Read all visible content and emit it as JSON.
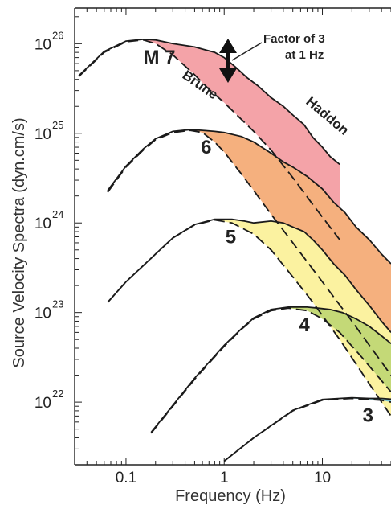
{
  "chart_data": {
    "type": "line",
    "xlabel": "Frequency (Hz)",
    "ylabel": "Source Velocity Spectra (dyn.cm/s)",
    "xscale": "log",
    "yscale": "log",
    "xlim": [
      0.03,
      50
    ],
    "ylim": [
      2e+21,
      2.5e+26
    ],
    "x_ticks": [
      {
        "value": 0.1,
        "label": "0.1"
      },
      {
        "value": 1,
        "label": "1"
      },
      {
        "value": 10,
        "label": "10"
      }
    ],
    "y_ticks": [
      {
        "value": 1e+22,
        "base": "10",
        "exp": "22"
      },
      {
        "value": 1e+23,
        "base": "10",
        "exp": "23"
      },
      {
        "value": 1e+24,
        "base": "10",
        "exp": "24"
      },
      {
        "value": 1e+25,
        "base": "10",
        "exp": "25"
      },
      {
        "value": 1e+26,
        "base": "10",
        "exp": "26"
      }
    ],
    "model_labels": {
      "brune": "Brune",
      "haddon": "Haddon"
    },
    "annotation": {
      "line1": "Factor of 3",
      "line2": "at 1 Hz"
    },
    "series": [
      {
        "magnitude": 7,
        "label": "M 7",
        "fill": "#f4a3a8",
        "end_f": 15,
        "brune": [
          [
            0.033,
            4.3e+25
          ],
          [
            0.06,
            8e+25
          ],
          [
            0.1,
            1.05e+26
          ],
          [
            0.15,
            1.1e+26
          ],
          [
            0.2,
            1e+26
          ],
          [
            0.3,
            7.5e+25
          ],
          [
            0.5,
            4.5e+25
          ],
          [
            0.7,
            3.1e+25
          ],
          [
            1.0,
            2.2e+25
          ],
          [
            2.0,
            1.05e+25
          ],
          [
            3.0,
            6.5e+24
          ],
          [
            5.0,
            3.2e+24
          ],
          [
            8.0,
            1.6e+24
          ],
          [
            15.0,
            6.5e+23
          ]
        ],
        "haddon": [
          [
            0.033,
            4.4e+25
          ],
          [
            0.06,
            8.2e+25
          ],
          [
            0.1,
            1.07e+26
          ],
          [
            0.15,
            1.12e+26
          ],
          [
            0.2,
            1.1e+26
          ],
          [
            0.3,
            1e+26
          ],
          [
            0.5,
            9.2e+25
          ],
          [
            0.8,
            8e+25
          ],
          [
            1.0,
            7e+25
          ],
          [
            1.3,
            5.5e+25
          ],
          [
            1.7,
            4.2e+25
          ],
          [
            2.2,
            3.4e+25
          ],
          [
            3.0,
            2.5e+25
          ],
          [
            4.0,
            2e+25
          ],
          [
            5.0,
            1.6e+25
          ],
          [
            6.5,
            1.25e+25
          ],
          [
            8.0,
            9e+24
          ],
          [
            10.0,
            7e+24
          ],
          [
            12.0,
            5.5e+24
          ],
          [
            15.0,
            4.5e+24
          ]
        ]
      },
      {
        "magnitude": 6,
        "label": "6",
        "fill": "#f5b07e",
        "end_f": 50,
        "brune": [
          [
            0.065,
            2.2e+24
          ],
          [
            0.1,
            4.2e+24
          ],
          [
            0.15,
            6.5e+24
          ],
          [
            0.2,
            8.5e+24
          ],
          [
            0.3,
            1.02e+25
          ],
          [
            0.45,
            1.08e+25
          ],
          [
            0.6,
            1.02e+25
          ],
          [
            0.8,
            8e+24
          ],
          [
            1.0,
            6.2e+24
          ],
          [
            1.5,
            3.5e+24
          ],
          [
            2.0,
            2.3e+24
          ],
          [
            3.0,
            1.25e+24
          ],
          [
            5.0,
            6e+23
          ],
          [
            10.0,
            2.2e+23
          ],
          [
            20.0,
            8e+22
          ],
          [
            50.0,
            2e+22
          ]
        ],
        "haddon": [
          [
            0.065,
            2.3e+24
          ],
          [
            0.1,
            4.3e+24
          ],
          [
            0.15,
            6.7e+24
          ],
          [
            0.2,
            8.7e+24
          ],
          [
            0.3,
            1.05e+25
          ],
          [
            0.45,
            1.1e+25
          ],
          [
            0.6,
            1.08e+25
          ],
          [
            0.8,
            1.05e+25
          ],
          [
            1.0,
            1.02e+25
          ],
          [
            1.5,
            9.2e+24
          ],
          [
            2.0,
            8e+24
          ],
          [
            3.0,
            6e+24
          ],
          [
            4.0,
            4.8e+24
          ],
          [
            5.0,
            4.2e+24
          ],
          [
            7.0,
            3.3e+24
          ],
          [
            10.0,
            2.4e+24
          ],
          [
            13.0,
            1.7e+24
          ],
          [
            17.0,
            1.3e+24
          ],
          [
            22.0,
            9e+23
          ],
          [
            30.0,
            6.5e+23
          ],
          [
            40.0,
            4.5e+23
          ],
          [
            50.0,
            3.5e+23
          ]
        ]
      },
      {
        "magnitude": 5,
        "label": "5",
        "fill": "#fbf2a0",
        "end_f": 50,
        "brune": [
          [
            0.065,
            1.3e+23
          ],
          [
            0.1,
            2.2e+23
          ],
          [
            0.2,
            4.5e+23
          ],
          [
            0.3,
            6.8e+23
          ],
          [
            0.5,
            9.5e+23
          ],
          [
            0.8,
            1.08e+24
          ],
          [
            1.2,
            1e+24
          ],
          [
            2.0,
            7.5e+23
          ],
          [
            3.0,
            5e+23
          ],
          [
            5.0,
            2.5e+23
          ],
          [
            8.0,
            1.3e+23
          ],
          [
            15.0,
            5e+22
          ],
          [
            30.0,
            1.6e+22
          ],
          [
            50.0,
            7e+21
          ]
        ],
        "haddon": [
          [
            0.065,
            1.3e+23
          ],
          [
            0.1,
            2.2e+23
          ],
          [
            0.2,
            4.5e+23
          ],
          [
            0.3,
            6.8e+23
          ],
          [
            0.5,
            9.6e+23
          ],
          [
            0.8,
            1.1e+24
          ],
          [
            1.2,
            1.1e+24
          ],
          [
            1.6,
            1.05e+24
          ],
          [
            2.0,
            1e+24
          ],
          [
            3.0,
            1.05e+24
          ],
          [
            4.0,
            1e+24
          ],
          [
            5.0,
            9e+23
          ],
          [
            6.5,
            8e+23
          ],
          [
            8.0,
            6.5e+23
          ],
          [
            10.0,
            5e+23
          ],
          [
            13.0,
            3.5e+23
          ],
          [
            17.0,
            2.6e+23
          ],
          [
            22.0,
            1.8e+23
          ],
          [
            30.0,
            1.2e+23
          ],
          [
            40.0,
            8e+22
          ],
          [
            50.0,
            6e+22
          ]
        ]
      },
      {
        "magnitude": 4,
        "label": "4",
        "fill": "#c4d977",
        "end_f": 50,
        "brune": [
          [
            0.18,
            4.5e+21
          ],
          [
            0.3,
            9e+21
          ],
          [
            0.5,
            1.8e+22
          ],
          [
            1.0,
            4.2e+22
          ],
          [
            1.5,
            6.5e+22
          ],
          [
            2.0,
            8.5e+22
          ],
          [
            3.0,
            1.05e+23
          ],
          [
            4.5,
            1.12e+23
          ],
          [
            7.0,
            1.05e+23
          ],
          [
            10.0,
            8.5e+22
          ],
          [
            15.0,
            6e+22
          ],
          [
            25.0,
            3.2e+22
          ],
          [
            50.0,
            1.3e+22
          ]
        ],
        "haddon": [
          [
            0.18,
            4.6e+21
          ],
          [
            0.3,
            9.2e+21
          ],
          [
            0.5,
            1.85e+22
          ],
          [
            1.0,
            4.3e+22
          ],
          [
            1.5,
            6.6e+22
          ],
          [
            2.0,
            8.7e+22
          ],
          [
            3.0,
            1.08e+23
          ],
          [
            4.5,
            1.15e+23
          ],
          [
            7.0,
            1.15e+23
          ],
          [
            9.0,
            1.12e+23
          ],
          [
            12.0,
            1.08e+23
          ],
          [
            16.0,
            1e+23
          ],
          [
            22.0,
            8.5e+22
          ],
          [
            30.0,
            7e+22
          ],
          [
            40.0,
            5.5e+22
          ],
          [
            50.0,
            4.5e+22
          ]
        ]
      },
      {
        "magnitude": 3,
        "label": "3",
        "fill": "#7cc6d3",
        "end_f": 50,
        "brune": [
          [
            1.0,
            2.2e+21
          ],
          [
            2.0,
            4e+21
          ],
          [
            5.0,
            8e+21
          ],
          [
            10.0,
            1.05e+22
          ],
          [
            20.0,
            1.1e+22
          ],
          [
            40.0,
            1.05e+22
          ],
          [
            50.0,
            1e+22
          ]
        ],
        "haddon": [
          [
            1.0,
            2.2e+21
          ],
          [
            2.0,
            4e+21
          ],
          [
            5.0,
            8.1e+21
          ],
          [
            10.0,
            1.07e+22
          ],
          [
            20.0,
            1.12e+22
          ],
          [
            30.0,
            1.1e+22
          ],
          [
            40.0,
            1.1e+22
          ],
          [
            50.0,
            1.08e+22
          ]
        ]
      }
    ]
  }
}
